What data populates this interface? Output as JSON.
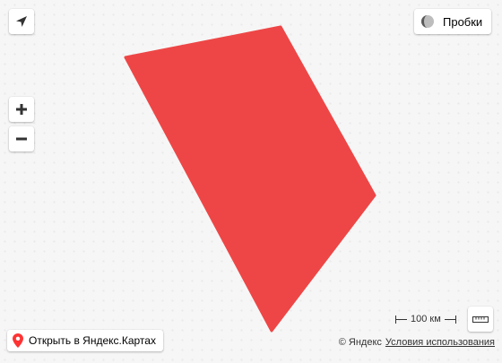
{
  "map": {
    "polygon_color": "#ee4646"
  },
  "controls": {
    "geolocation_icon": "navigation-arrow-icon",
    "zoom_in_icon": "plus-icon",
    "zoom_out_icon": "minus-icon",
    "traffic_label": "Пробки",
    "traffic_icon": "traffic-light-icon",
    "ruler_icon": "ruler-icon"
  },
  "open_in_maps": {
    "label": "Открыть в Яндекс.Картах",
    "icon": "map-pin-icon",
    "icon_color": "#f33"
  },
  "scale": {
    "label": "100 км"
  },
  "copyright": {
    "brand": "© Яндекс",
    "terms_link": "Условия использования"
  }
}
